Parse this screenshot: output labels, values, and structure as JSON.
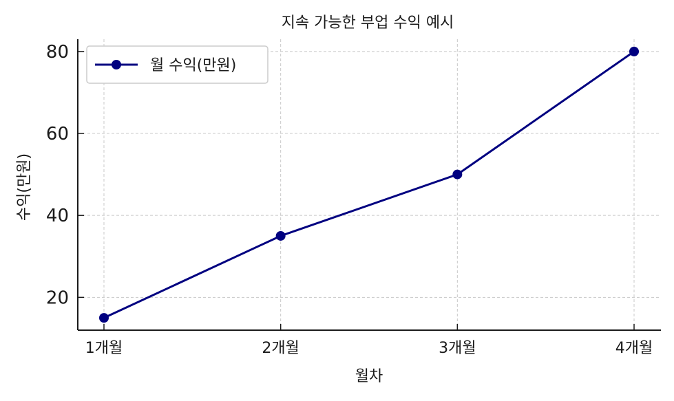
{
  "chart_data": {
    "type": "line",
    "title": "지속 가능한 부업 수익 예시",
    "xlabel": "월차",
    "ylabel": "수익(만원)",
    "categories": [
      "1개월",
      "2개월",
      "3개월",
      "4개월"
    ],
    "series": [
      {
        "name": "월 수익(만원)",
        "values": [
          15,
          35,
          50,
          80
        ],
        "color": "#000080"
      }
    ],
    "ylim": [
      12,
      83
    ],
    "yticks": [
      20,
      40,
      60,
      80
    ],
    "grid": true,
    "legend": "top-left",
    "marker": "circle"
  }
}
